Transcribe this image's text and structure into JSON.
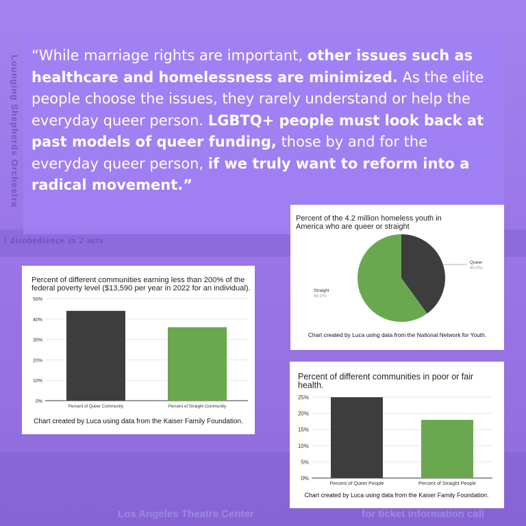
{
  "quote": {
    "segments": [
      {
        "text": "“While marriage rights are important, ",
        "bold": false
      },
      {
        "text": "other issues such as healthcare and homelessness are minimized.",
        "bold": true
      },
      {
        "text": " As the elite people choose the issues, they rarely understand or help the everyday queer person. ",
        "bold": false
      },
      {
        "text": "LGBTQ+ people must look back at past models of queer funding,",
        "bold": true
      },
      {
        "text": " those by and for the everyday queer person, ",
        "bold": false
      },
      {
        "text": "if we truly want to reform into a radical movement.”",
        "bold": true
      }
    ]
  },
  "background": {
    "vertical_text": "Lounging Shepherds Orchestra",
    "line1": "l disobedience in 2 acts",
    "footer_left": "Los Angeles Theatre Center",
    "footer_right": "for ticket information call"
  },
  "colors": {
    "dark": "#3d3d3d",
    "green": "#6aa84f",
    "background": "#9b78e8"
  },
  "chart_data": [
    {
      "type": "bar",
      "title": "Percent of different communities earning less than 200% of the federal poverty level ($13,590 per year in 2022 for an individual).",
      "title_lines": [
        "Percent of different communities earning less than 200% of the",
        "federal poverty level ($13,590 per year in 2022 for an individual)."
      ],
      "categories": [
        "Percent of Queer Community",
        "Percent of Straight Community"
      ],
      "values": [
        44,
        36
      ],
      "yticks": [
        "0%",
        "10%",
        "20%",
        "30%",
        "40%",
        "50%"
      ],
      "ylim": [
        0,
        50
      ],
      "caption": "Chart created by Luca using data from the Kaiser Family Foundation."
    },
    {
      "type": "pie",
      "title": "Percent of the 4.2 million homeless youth in America who are queer or straight",
      "title_lines": [
        "Percent of the 4.2 million homeless youth in",
        "America who are queer or straight"
      ],
      "slices": [
        {
          "label": "Queer",
          "value": 40,
          "value_label": "40.0%"
        },
        {
          "label": "Straight",
          "value": 60,
          "value_label": "60.0%"
        }
      ],
      "caption": "Chart created by Luca using data from the National Network for Youth."
    },
    {
      "type": "bar",
      "title": "Percent of different communities in poor or fair health.",
      "title_lines": [
        "Percent of different communities in poor or fair",
        "health."
      ],
      "categories": [
        "Percent of Queer People",
        "Percent of Straight People"
      ],
      "values": [
        25,
        18
      ],
      "yticks": [
        "0%",
        "5%",
        "10%",
        "15%",
        "20%",
        "25%"
      ],
      "ylim": [
        0,
        25
      ],
      "caption": "Chart created by Luca using data from the Kaiser Family Foundation."
    }
  ]
}
